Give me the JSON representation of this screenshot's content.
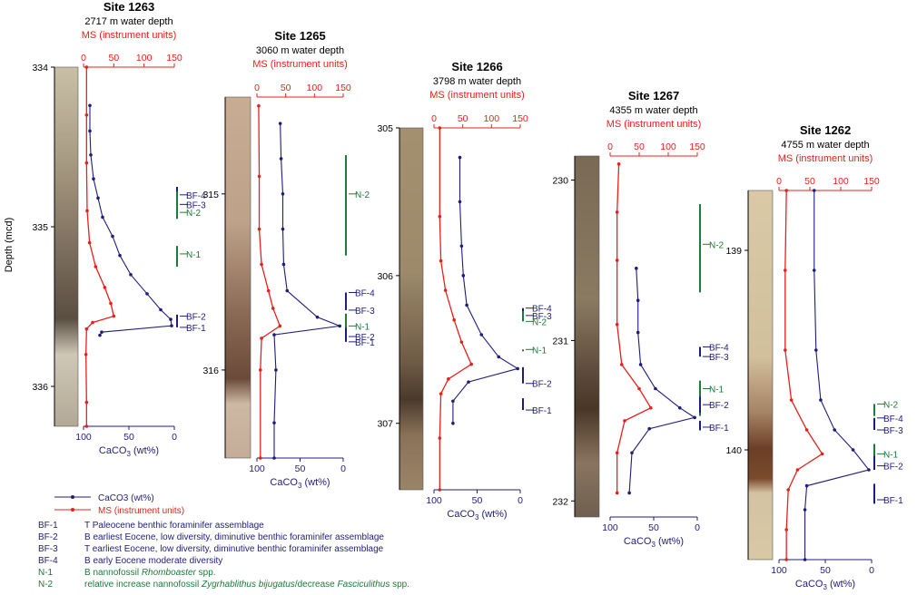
{
  "figure": {
    "depth_axis_label": "Depth (mcd)",
    "ms_axis_label": "MS (instrument units)",
    "caco3_axis_label_main": "CaCO",
    "caco3_axis_label_sub": "3",
    "caco3_axis_label_tail": " (wt%)"
  },
  "colors": {
    "caco3": "#1f1d7a",
    "ms": "#e8201c",
    "markers_benthic": "#1f1d7a",
    "markers_nanno": "#1e7a3a"
  },
  "legend": {
    "caco3_label": "CaCO3 (wt%)",
    "ms_label": "MS (instrument units)",
    "items": [
      {
        "code": "BF-1",
        "text": "T Paleocene benthic foraminifer assemblage",
        "color": "#1f1d7a"
      },
      {
        "code": "BF-2",
        "text": "B earliest Eocene, low diversity, diminutive benthic foraminifer assemblage",
        "color": "#1f1d7a"
      },
      {
        "code": "BF-3",
        "text": "T earliest Eocene, low diversity, diminutive benthic foraminifer assemblage",
        "color": "#1f1d7a"
      },
      {
        "code": "BF-4",
        "text": "B early Eocene moderate diversity",
        "color": "#1f1d7a"
      },
      {
        "code": "N-1",
        "text": "B nannofossil ",
        "italic": "Rhomboaster",
        "tail": " spp.",
        "color": "#1e7a3a"
      },
      {
        "code": "N-2",
        "text": "relative increase nannofossil ",
        "italic": "Zygrhablithus bijugatus",
        "tail": "/decrease ",
        "italic2": "Fasciculithus",
        "tail2": " spp.",
        "color": "#1e7a3a"
      }
    ]
  },
  "chart_data": [
    {
      "type": "line",
      "site": "Site 1263",
      "water_depth": "2717 m water depth",
      "depth_range_mcd": [
        334.0,
        336.25
      ],
      "depth_ticks": [
        "334",
        "335",
        "336"
      ],
      "ms_ticks": [
        "0",
        "50",
        "100",
        "150"
      ],
      "caco3_ticks": [
        "100",
        "50",
        "0"
      ],
      "ms_lim": [
        0,
        150
      ],
      "caco3_lim": [
        100,
        0
      ],
      "series": [
        {
          "name": "CaCO3 (wt%)",
          "points": [
            [
              334.24,
              93
            ],
            [
              334.4,
              93
            ],
            [
              334.55,
              92
            ],
            [
              334.7,
              89
            ],
            [
              334.82,
              84
            ],
            [
              334.94,
              79
            ],
            [
              335.06,
              68
            ],
            [
              335.18,
              60
            ],
            [
              335.3,
              48
            ],
            [
              335.42,
              30
            ],
            [
              335.52,
              15
            ],
            [
              335.58,
              4
            ],
            [
              335.62,
              3
            ],
            [
              335.66,
              80
            ],
            [
              335.68,
              82
            ]
          ]
        },
        {
          "name": "MS (instrument units)",
          "points": [
            [
              334.0,
              5
            ],
            [
              334.3,
              5
            ],
            [
              334.6,
              5
            ],
            [
              334.9,
              6
            ],
            [
              335.1,
              10
            ],
            [
              335.25,
              20
            ],
            [
              335.38,
              35
            ],
            [
              335.48,
              45
            ],
            [
              335.56,
              50
            ],
            [
              335.6,
              15
            ],
            [
              335.64,
              5
            ],
            [
              335.8,
              4
            ],
            [
              336.1,
              5
            ],
            [
              336.25,
              5
            ]
          ]
        }
      ],
      "markers": [
        {
          "label": "BF-4",
          "depth": 334.8,
          "kind": "benthic",
          "range": [
            334.75,
            334.95
          ]
        },
        {
          "label": "BF-3",
          "depth": 334.86,
          "kind": "benthic",
          "range": [
            334.86,
            334.86
          ]
        },
        {
          "label": "N-2",
          "depth": 334.91,
          "kind": "nanno",
          "range": [
            334.78,
            334.95
          ]
        },
        {
          "label": "N-1",
          "depth": 335.17,
          "kind": "nanno",
          "range": [
            335.12,
            335.25
          ]
        },
        {
          "label": "BF-2",
          "depth": 335.56,
          "kind": "benthic",
          "range": [
            335.55,
            335.6
          ]
        },
        {
          "label": "BF-1",
          "depth": 335.63,
          "kind": "benthic",
          "range": [
            335.6,
            335.63
          ]
        }
      ]
    },
    {
      "type": "line",
      "site": "Site 1265",
      "water_depth": "3060 m water depth",
      "depth_range_mcd": [
        314.45,
        316.5
      ],
      "depth_ticks": [
        "315",
        "316"
      ],
      "ms_ticks": [
        "0",
        "50",
        "100",
        "150"
      ],
      "caco3_ticks": [
        "100",
        "50",
        "0"
      ],
      "ms_lim": [
        0,
        150
      ],
      "caco3_lim": [
        100,
        0
      ],
      "series": [
        {
          "name": "CaCO3 (wt%)",
          "points": [
            [
              314.6,
              73
            ],
            [
              314.8,
              72
            ],
            [
              315.0,
              70
            ],
            [
              315.2,
              70
            ],
            [
              315.4,
              69
            ],
            [
              315.55,
              65
            ],
            [
              315.7,
              30
            ],
            [
              315.75,
              4
            ],
            [
              315.8,
              80
            ],
            [
              316.0,
              78
            ],
            [
              316.3,
              80
            ],
            [
              316.5,
              80
            ]
          ]
        },
        {
          "name": "MS (instrument units)",
          "points": [
            [
              314.5,
              3
            ],
            [
              314.9,
              4
            ],
            [
              315.2,
              4
            ],
            [
              315.4,
              8
            ],
            [
              315.55,
              20
            ],
            [
              315.65,
              28
            ],
            [
              315.75,
              40
            ],
            [
              315.82,
              8
            ],
            [
              316.0,
              6
            ],
            [
              316.5,
              6
            ]
          ]
        }
      ],
      "markers": [
        {
          "label": "N-2",
          "depth": 315.0,
          "kind": "nanno",
          "range": [
            314.78,
            315.35
          ]
        },
        {
          "label": "BF-4",
          "depth": 315.56,
          "kind": "benthic",
          "range": [
            315.56,
            315.62
          ]
        },
        {
          "label": "BF-3",
          "depth": 315.66,
          "kind": "benthic",
          "range": [
            315.62,
            315.66
          ]
        },
        {
          "label": "N-1",
          "depth": 315.75,
          "kind": "nanno",
          "range": [
            315.68,
            315.82
          ]
        },
        {
          "label": "BF-2",
          "depth": 315.81,
          "kind": "benthic",
          "range": [
            315.76,
            315.81
          ]
        },
        {
          "label": "BF-1",
          "depth": 315.84,
          "kind": "benthic",
          "range": [
            315.81,
            315.84
          ]
        }
      ]
    },
    {
      "type": "line",
      "site": "Site 1266",
      "water_depth": "3798 m water depth",
      "depth_range_mcd": [
        305.0,
        307.45
      ],
      "depth_ticks": [
        "305",
        "306",
        "307"
      ],
      "ms_ticks": [
        "0",
        "50",
        "100",
        "150"
      ],
      "caco3_ticks": [
        "100",
        "50",
        "0"
      ],
      "ms_lim": [
        0,
        150
      ],
      "caco3_lim": [
        100,
        0
      ],
      "series": [
        {
          "name": "CaCO3 (wt%)",
          "points": [
            [
              305.2,
              70
            ],
            [
              305.5,
              70
            ],
            [
              305.8,
              68
            ],
            [
              306.0,
              66
            ],
            [
              306.2,
              62
            ],
            [
              306.4,
              45
            ],
            [
              306.55,
              25
            ],
            [
              306.63,
              3
            ],
            [
              306.72,
              60
            ],
            [
              306.85,
              78
            ],
            [
              307.0,
              78
            ]
          ]
        },
        {
          "name": "MS (instrument units)",
          "points": [
            [
              305.0,
              10
            ],
            [
              305.6,
              10
            ],
            [
              305.9,
              12
            ],
            [
              306.1,
              20
            ],
            [
              306.3,
              35
            ],
            [
              306.45,
              48
            ],
            [
              306.6,
              65
            ],
            [
              306.7,
              25
            ],
            [
              306.8,
              12
            ],
            [
              307.1,
              10
            ],
            [
              307.45,
              10
            ]
          ]
        }
      ],
      "markers": [
        {
          "label": "BF-4",
          "depth": 306.22,
          "kind": "benthic",
          "range": [
            306.22,
            306.28
          ]
        },
        {
          "label": "BF-3",
          "depth": 306.27,
          "kind": "benthic",
          "range": [
            306.24,
            306.28
          ]
        },
        {
          "label": "N-2",
          "depth": 306.31,
          "kind": "nanno",
          "range": [
            306.24,
            306.31
          ]
        },
        {
          "label": "N-1",
          "depth": 306.5,
          "kind": "nanno",
          "range": [
            306.5,
            306.5
          ]
        },
        {
          "label": "BF-2",
          "depth": 306.73,
          "kind": "benthic",
          "range": [
            306.62,
            306.73
          ]
        },
        {
          "label": "BF-1",
          "depth": 306.91,
          "kind": "benthic",
          "range": [
            306.83,
            306.91
          ]
        }
      ]
    },
    {
      "type": "line",
      "site": "Site 1267",
      "water_depth": "4355 m water depth",
      "depth_range_mcd": [
        229.85,
        232.1
      ],
      "depth_ticks": [
        "230",
        "231",
        "232"
      ],
      "ms_ticks": [
        "0",
        "50",
        "100",
        "150"
      ],
      "caco3_ticks": [
        "100",
        "50",
        "0"
      ],
      "ms_lim": [
        0,
        150
      ],
      "caco3_lim": [
        100,
        0
      ],
      "series": [
        {
          "name": "CaCO3 (wt%)",
          "points": [
            [
              230.55,
              70
            ],
            [
              230.75,
              68
            ],
            [
              230.95,
              68
            ],
            [
              231.15,
              65
            ],
            [
              231.3,
              48
            ],
            [
              231.42,
              20
            ],
            [
              231.48,
              3
            ],
            [
              231.55,
              55
            ],
            [
              231.7,
              75
            ],
            [
              231.95,
              78
            ]
          ]
        },
        {
          "name": "MS (instrument units)",
          "points": [
            [
              229.9,
              15
            ],
            [
              230.2,
              12
            ],
            [
              230.5,
              12
            ],
            [
              230.9,
              12
            ],
            [
              231.15,
              20
            ],
            [
              231.3,
              50
            ],
            [
              231.42,
              70
            ],
            [
              231.5,
              25
            ],
            [
              231.7,
              12
            ],
            [
              231.95,
              12
            ]
          ]
        }
      ],
      "markers": [
        {
          "label": "N-2",
          "depth": 230.4,
          "kind": "nanno",
          "range": [
            230.15,
            230.7
          ]
        },
        {
          "label": "BF-4",
          "depth": 231.04,
          "kind": "benthic",
          "range": [
            231.04,
            231.1
          ]
        },
        {
          "label": "BF-3",
          "depth": 231.1,
          "kind": "benthic",
          "range": [
            231.06,
            231.1
          ]
        },
        {
          "label": "N-1",
          "depth": 231.3,
          "kind": "nanno",
          "range": [
            231.25,
            231.47
          ]
        },
        {
          "label": "BF-2",
          "depth": 231.4,
          "kind": "benthic",
          "range": [
            231.35,
            231.45
          ]
        },
        {
          "label": "BF-1",
          "depth": 231.54,
          "kind": "benthic",
          "range": [
            231.5,
            231.56
          ]
        }
      ]
    },
    {
      "type": "line",
      "site": "Site 1262",
      "water_depth": "4755 m water depth",
      "depth_range_mcd": [
        138.7,
        140.55
      ],
      "depth_ticks": [
        "139",
        "140"
      ],
      "ms_ticks": [
        "0",
        "50",
        "100",
        "150"
      ],
      "caco3_ticks": [
        "100",
        "50",
        "0"
      ],
      "ms_lim": [
        0,
        150
      ],
      "caco3_lim": [
        100,
        0
      ],
      "series": [
        {
          "name": "CaCO3 (wt%)",
          "points": [
            [
              138.7,
              62
            ],
            [
              139.1,
              62
            ],
            [
              139.5,
              60
            ],
            [
              139.75,
              55
            ],
            [
              139.9,
              40
            ],
            [
              140.0,
              20
            ],
            [
              140.1,
              3
            ],
            [
              140.18,
              70
            ],
            [
              140.3,
              72
            ],
            [
              140.55,
              72
            ]
          ]
        },
        {
          "name": "MS (instrument units)",
          "points": [
            [
              138.7,
              12
            ],
            [
              139.1,
              10
            ],
            [
              139.5,
              10
            ],
            [
              139.75,
              20
            ],
            [
              139.9,
              45
            ],
            [
              140.02,
              70
            ],
            [
              140.1,
              30
            ],
            [
              140.2,
              15
            ],
            [
              140.4,
              12
            ],
            [
              140.55,
              12
            ]
          ]
        }
      ],
      "markers": [
        {
          "label": "N-2",
          "depth": 139.77,
          "kind": "nanno",
          "range": [
            139.77,
            139.83
          ]
        },
        {
          "label": "BF-4",
          "depth": 139.84,
          "kind": "benthic",
          "range": [
            139.84,
            139.9
          ]
        },
        {
          "label": "BF-3",
          "depth": 139.9,
          "kind": "benthic",
          "range": [
            139.86,
            139.9
          ]
        },
        {
          "label": "N-1",
          "depth": 140.02,
          "kind": "nanno",
          "range": [
            139.97,
            140.1
          ]
        },
        {
          "label": "BF-2",
          "depth": 140.08,
          "kind": "benthic",
          "range": [
            140.03,
            140.1
          ]
        },
        {
          "label": "BF-1",
          "depth": 140.25,
          "kind": "benthic",
          "range": [
            140.17,
            140.27
          ]
        }
      ]
    }
  ]
}
